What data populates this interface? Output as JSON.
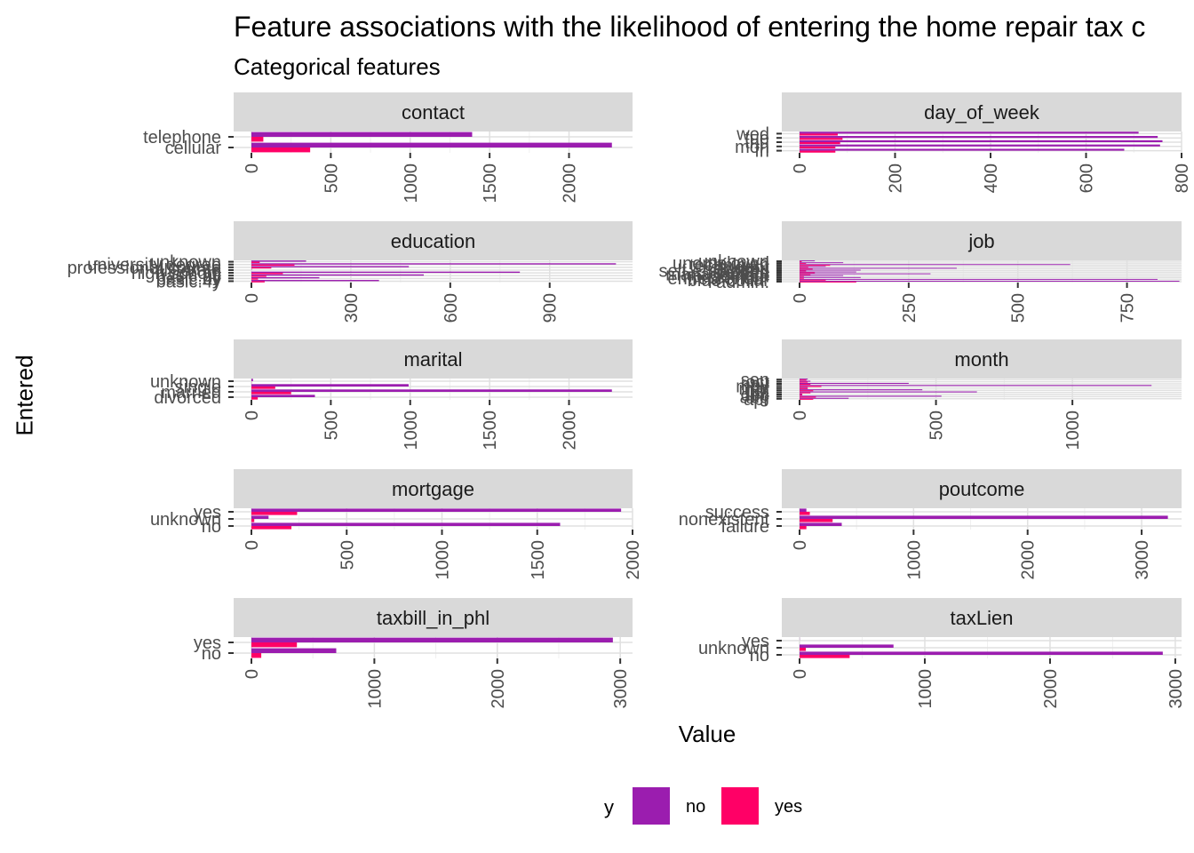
{
  "title": "Feature associations with the likelihood of entering the home repair tax c",
  "subtitle": "Categorical features",
  "xlabel": "Value",
  "ylabel": "Entered",
  "legend": {
    "title": "y",
    "items": [
      {
        "label": "no",
        "color": "#9B1DAF"
      },
      {
        "label": "yes",
        "color": "#FF0066"
      }
    ]
  },
  "chart_data": {
    "type": "bar",
    "orientation": "horizontal",
    "facet_by": "feature",
    "legend_position": "bottom",
    "grid": true,
    "panels": [
      {
        "name": "contact",
        "xlim": [
          0,
          2400
        ],
        "ticks": [
          0,
          500,
          1000,
          1500,
          2000
        ],
        "categories": [
          "cellular",
          "telephone"
        ],
        "series": [
          {
            "name": "no",
            "values": [
              2270,
              1390
            ]
          },
          {
            "name": "yes",
            "values": [
              370,
              75
            ]
          }
        ]
      },
      {
        "name": "day_of_week",
        "xlim": [
          0,
          800
        ],
        "ticks": [
          0,
          200,
          400,
          600,
          800
        ],
        "categories": [
          "fri",
          "mon",
          "thu",
          "tue",
          "wed"
        ],
        "series": [
          {
            "name": "no",
            "values": [
              680,
              755,
              760,
              750,
              710
            ]
          },
          {
            "name": "yes",
            "values": [
              75,
              75,
              85,
              90,
              80
            ]
          }
        ]
      },
      {
        "name": "education",
        "xlim": [
          0,
          1150
        ],
        "ticks": [
          0,
          300,
          600,
          900
        ],
        "categories": [
          "basic.4y",
          "basic.6y",
          "basic.9y",
          "high.school",
          "illiterate",
          "professional.course",
          "university.degree",
          "unknown"
        ],
        "series": [
          {
            "name": "no",
            "values": [
              385,
              205,
              520,
              810,
              1,
              475,
              1100,
              165
            ]
          },
          {
            "name": "yes",
            "values": [
              40,
              20,
              45,
              95,
              0,
              60,
              130,
              25
            ]
          }
        ]
      },
      {
        "name": "job",
        "xlim": [
          0,
          875
        ],
        "ticks": [
          0,
          250,
          500,
          750
        ],
        "categories": [
          "admin.",
          "blue-collar",
          "entrepreneur",
          "housemaid",
          "management",
          "retired",
          "self-employed",
          "services",
          "student",
          "technician",
          "unemployed",
          "unknown"
        ],
        "series": [
          {
            "name": "no",
            "values": [
              870,
              820,
              140,
              100,
              300,
              130,
              140,
              360,
              60,
              620,
              100,
              35
            ]
          },
          {
            "name": "yes",
            "values": [
              130,
              60,
              10,
              10,
              25,
              35,
              15,
              30,
              20,
              70,
              15,
              5
            ]
          }
        ]
      },
      {
        "name": "marital",
        "xlim": [
          0,
          2400
        ],
        "ticks": [
          0,
          500,
          1000,
          1500,
          2000
        ],
        "categories": [
          "divorced",
          "married",
          "single",
          "unknown"
        ],
        "series": [
          {
            "name": "no",
            "values": [
              400,
              2270,
              990,
              10
            ]
          },
          {
            "name": "yes",
            "values": [
              40,
              250,
              150,
              1
            ]
          }
        ]
      },
      {
        "name": "month",
        "xlim": [
          0,
          1400
        ],
        "ticks": [
          0,
          500,
          1000
        ],
        "categories": [
          "apr",
          "aug",
          "dec",
          "jul",
          "jun",
          "mar",
          "may",
          "nov",
          "oct",
          "sep"
        ],
        "series": [
          {
            "name": "no",
            "values": [
              180,
              520,
              10,
              650,
              450,
              30,
              1290,
              400,
              40,
              30
            ]
          },
          {
            "name": "yes",
            "values": [
              50,
              60,
              10,
              40,
              50,
              30,
              80,
              40,
              30,
              25
            ]
          }
        ]
      },
      {
        "name": "mortgage",
        "xlim": [
          0,
          2000
        ],
        "ticks": [
          0,
          500,
          1000,
          1500,
          2000
        ],
        "categories": [
          "no",
          "unknown",
          "yes"
        ],
        "series": [
          {
            "name": "no",
            "values": [
              1620,
              90,
              1940
            ]
          },
          {
            "name": "yes",
            "values": [
              210,
              15,
              240
            ]
          }
        ]
      },
      {
        "name": "poutcome",
        "xlim": [
          0,
          3350
        ],
        "ticks": [
          0,
          1000,
          2000,
          3000
        ],
        "categories": [
          "failure",
          "nonexistent",
          "success"
        ],
        "series": [
          {
            "name": "no",
            "values": [
              370,
              3230,
              60
            ]
          },
          {
            "name": "yes",
            "values": [
              60,
              290,
              90
            ]
          }
        ]
      },
      {
        "name": "taxbill_in_phl",
        "xlim": [
          0,
          3100
        ],
        "ticks": [
          0,
          1000,
          2000,
          3000
        ],
        "categories": [
          "no",
          "yes"
        ],
        "series": [
          {
            "name": "no",
            "values": [
              690,
              2940
            ]
          },
          {
            "name": "yes",
            "values": [
              80,
              370
            ]
          }
        ]
      },
      {
        "name": "taxLien",
        "xlim": [
          0,
          3050
        ],
        "ticks": [
          0,
          1000,
          2000,
          3000
        ],
        "categories": [
          "no",
          "unknown",
          "yes"
        ],
        "series": [
          {
            "name": "no",
            "values": [
              2900,
              750,
              1
            ]
          },
          {
            "name": "yes",
            "values": [
              400,
              50,
              0
            ]
          }
        ]
      }
    ]
  }
}
